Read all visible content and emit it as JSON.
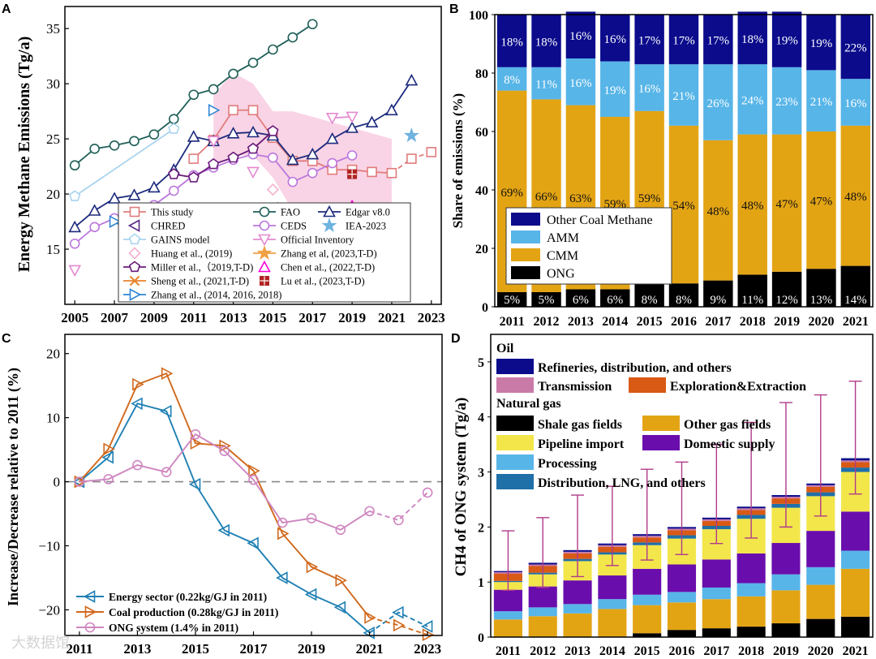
{
  "panel_labels": {
    "A": "A",
    "B": "B",
    "C": "C",
    "D": "D"
  },
  "chart_data": [
    {
      "panel": "A",
      "type": "line",
      "ylabel": "Energy Methane Emissions (Tg/a)",
      "xlim": [
        2004.5,
        2023.5
      ],
      "ylim": [
        10,
        37
      ],
      "x_ticks": [
        2005,
        2007,
        2009,
        2011,
        2013,
        2015,
        2017,
        2019,
        2021,
        2023
      ],
      "y_ticks": [
        15,
        20,
        25,
        30,
        35
      ],
      "band": {
        "x": [
          2012,
          2013,
          2014,
          2015,
          2016,
          2017,
          2018,
          2019,
          2020,
          2021
        ],
        "lower": [
          22.5,
          23.5,
          23.5,
          21.5,
          18.5,
          17.5,
          18,
          18.5,
          18,
          17.5
        ],
        "upper": [
          29,
          31,
          30,
          27.5,
          27.5,
          27,
          26.5,
          26,
          25.5,
          25
        ]
      },
      "series": [
        {
          "name": "This study",
          "color": "#e17b7b",
          "marker": "square",
          "x": [
            2011,
            2012,
            2013,
            2014,
            2015,
            2016,
            2017,
            2018,
            2019,
            2020,
            2021
          ],
          "y": [
            23.2,
            24.9,
            27.6,
            27.6,
            25.1,
            23.0,
            23.0,
            22.2,
            22.2,
            22.0,
            21.9
          ],
          "dashed_x": [
            2021,
            2022,
            2023
          ],
          "dashed_y": [
            21.9,
            23.2,
            23.8
          ]
        },
        {
          "name": "FAO",
          "color": "#1e5f57",
          "marker": "circle",
          "x": [
            2005,
            2006,
            2007,
            2008,
            2009,
            2010,
            2011,
            2012,
            2013,
            2014,
            2015,
            2016,
            2017
          ],
          "y": [
            22.6,
            24.1,
            24.4,
            24.8,
            25.4,
            26.8,
            29.0,
            29.5,
            30.9,
            31.9,
            33.1,
            34.2,
            35.4
          ]
        },
        {
          "name": "Edgar v8.0",
          "color": "#1c2a7c",
          "marker": "triangle-up",
          "x": [
            2005,
            2006,
            2007,
            2008,
            2009,
            2010,
            2011,
            2012,
            2013,
            2014,
            2015,
            2016,
            2017,
            2018,
            2019,
            2020,
            2021,
            2022
          ],
          "y": [
            17.0,
            18.5,
            19.6,
            19.9,
            20.6,
            22.2,
            25.2,
            24.8,
            25.5,
            25.6,
            25.3,
            23.1,
            23.6,
            25.0,
            26.0,
            26.5,
            27.6,
            30.3
          ]
        },
        {
          "name": "CHRED",
          "color": "#5b2a86",
          "marker": "triangle-left",
          "x": [
            2015
          ],
          "y": [
            18.7
          ]
        },
        {
          "name": "CEDS",
          "color": "#bb77dd",
          "marker": "circle",
          "x": [
            2005,
            2006,
            2007,
            2008,
            2009,
            2010,
            2011,
            2012,
            2013,
            2014,
            2015,
            2016,
            2017,
            2018,
            2019
          ],
          "y": [
            15.5,
            17.0,
            17.8,
            18.1,
            19.0,
            20.3,
            21.7,
            22.4,
            23.1,
            23.6,
            23.3,
            21.1,
            21.9,
            22.8,
            23.5
          ]
        },
        {
          "name": "IEA-2023",
          "color": "#6fb3e0",
          "marker": "star",
          "x": [
            2022
          ],
          "y": [
            25.3
          ]
        },
        {
          "name": "GAINS model",
          "color": "#a9d4ef",
          "marker": "pentagon",
          "x": [
            2005,
            2010
          ],
          "y": [
            19.8,
            25.9
          ]
        },
        {
          "name": "Official Inventory",
          "color": "#e58ad0",
          "marker": "triangle-down",
          "x": [
            2005,
            2012,
            2014,
            2018,
            2019
          ],
          "y": [
            13.1,
            24.8,
            22.0,
            26.9,
            27.0
          ],
          "connect": [
            [
              3,
              4
            ]
          ]
        },
        {
          "name": "Huang et al., (2019)",
          "color": "#f3b1cf",
          "marker": "diamond",
          "x": [
            2015
          ],
          "y": [
            20.4
          ]
        },
        {
          "name": "Zhang et al, (2023,T-D)",
          "color": "#f0a045",
          "marker": "star",
          "x": [
            2010,
            2011,
            2012,
            2013,
            2014,
            2015,
            2016,
            2017
          ],
          "y": [
            14.5,
            16.0,
            16.5,
            17.6,
            16.6,
            16.2,
            16.3,
            17.4
          ]
        },
        {
          "name": "Miller et al.,（2019,T-D)",
          "color": "#6a1b7a",
          "marker": "pentagon",
          "x": [
            2010,
            2011,
            2012,
            2013,
            2014,
            2015
          ],
          "y": [
            21.8,
            21.5,
            22.7,
            23.3,
            24.1,
            25.7
          ]
        },
        {
          "name": "Chen et al., (2022,T-D)",
          "color": "#ff00d8",
          "marker": "triangle-up",
          "x": [
            2019
          ],
          "y": [
            18.9
          ]
        },
        {
          "name": "Sheng et al., (2021,T-D)",
          "color": "#e8832b",
          "marker": "x",
          "x": [
            2010,
            2011,
            2012,
            2013,
            2014,
            2015,
            2016,
            2017
          ],
          "y": [
            14.5,
            15.5,
            15.8,
            15.8,
            15.8,
            15.9,
            15.8,
            16.1
          ]
        },
        {
          "name": "Lu et al., (2023,T-D)",
          "color": "#b22222",
          "marker": "square-plus",
          "x": [
            2019
          ],
          "y": [
            21.8
          ]
        },
        {
          "name": "Zhang et al., (2014, 2016, 2018)",
          "color": "#2f86d4",
          "marker": "triangle-right",
          "x": [
            2007,
            2008,
            2012
          ],
          "y": [
            17.5,
            16.4,
            27.6
          ],
          "connect": [
            [
              0,
              1
            ]
          ]
        }
      ]
    },
    {
      "panel": "B",
      "type": "bar",
      "stacked": true,
      "ylabel": "Share of emissions (%)",
      "ylim": [
        0,
        100
      ],
      "y_ticks": [
        0,
        20,
        40,
        60,
        80,
        100
      ],
      "categories": [
        "2011",
        "2012",
        "2013",
        "2014",
        "2015",
        "2016",
        "2017",
        "2018",
        "2019",
        "2020",
        "2021"
      ],
      "series": [
        {
          "name": "ONG",
          "color": "#000000",
          "values": [
            5,
            5,
            6,
            6,
            8,
            8,
            9,
            11,
            12,
            13,
            14
          ],
          "labels": [
            "5%",
            "5%",
            "6%",
            "6%",
            "8%",
            "8%",
            "9%",
            "11%",
            "12%",
            "13%",
            "14%"
          ]
        },
        {
          "name": "CMM",
          "color": "#e3a414",
          "values": [
            69,
            66,
            63,
            59,
            59,
            54,
            48,
            48,
            47,
            47,
            48
          ],
          "labels": [
            "69%",
            "66%",
            "63%",
            "59%",
            "59%",
            "54%",
            "48%",
            "48%",
            "47%",
            "47%",
            "48%"
          ]
        },
        {
          "name": "AMM",
          "color": "#57b5e8",
          "values": [
            8,
            11,
            16,
            19,
            16,
            21,
            26,
            24,
            23,
            21,
            16
          ],
          "labels": [
            "8%",
            "11%",
            "16%",
            "19%",
            "16%",
            "21%",
            "26%",
            "24%",
            "23%",
            "21%",
            "16%"
          ]
        },
        {
          "name": "Other Coal Methane",
          "color": "#0b0b8c",
          "values": [
            18,
            18,
            16,
            16,
            17,
            17,
            17,
            18,
            19,
            19,
            22
          ],
          "labels": [
            "18%",
            "18%",
            "16%",
            "16%",
            "17%",
            "17%",
            "17%",
            "18%",
            "19%",
            "19%",
            "22%"
          ]
        }
      ],
      "legend_order": [
        "Other Coal Methane",
        "AMM",
        "CMM",
        "ONG"
      ]
    },
    {
      "panel": "C",
      "type": "line",
      "ylabel": "Increase/Decrease relative to 2011 (%)",
      "xlim": [
        2010.5,
        2023.5
      ],
      "ylim": [
        -24,
        23
      ],
      "x_ticks": [
        2011,
        2013,
        2015,
        2017,
        2019,
        2021,
        2023
      ],
      "y_ticks": [
        -20,
        -10,
        0,
        10,
        20
      ],
      "series": [
        {
          "name": "Energy sector (0.22kg/GJ in 2011)",
          "color": "#1f80b4",
          "marker": "triangle-left",
          "x": [
            2011,
            2012,
            2013,
            2014,
            2015,
            2016,
            2017,
            2018,
            2019,
            2020,
            2021
          ],
          "y": [
            0,
            3.8,
            12.2,
            11.0,
            -0.4,
            -7.6,
            -9.6,
            -15.0,
            -17.6,
            -19.6,
            -23.6
          ],
          "dashed_x": [
            2021,
            2022,
            2023
          ],
          "dashed_y": [
            -23.6,
            -20.4,
            -22.6
          ]
        },
        {
          "name": "Coal production (0.28kg/GJ in 2011)",
          "color": "#d1691c",
          "marker": "triangle-right",
          "x": [
            2011,
            2012,
            2013,
            2014,
            2015,
            2016,
            2017,
            2018,
            2019,
            2020,
            2021
          ],
          "y": [
            0,
            5.1,
            15.2,
            16.9,
            6.0,
            5.6,
            1.7,
            -8.1,
            -13.3,
            -15.4,
            -21.2
          ],
          "dashed_x": [
            2021,
            2022,
            2023
          ],
          "dashed_y": [
            -21.2,
            -22.4,
            -23.9
          ]
        },
        {
          "name": "ONG system (1.4% in 2011)",
          "color": "#cf86c0",
          "marker": "circle",
          "x": [
            2011,
            2012,
            2013,
            2014,
            2015,
            2016,
            2017,
            2018,
            2019,
            2020,
            2021
          ],
          "y": [
            0,
            0.4,
            2.6,
            1.5,
            7.4,
            4.8,
            0.3,
            -6.4,
            -5.7,
            -7.5,
            -4.6
          ],
          "dashed_x": [
            2021,
            2022,
            2023
          ],
          "dashed_y": [
            -4.6,
            -6.0,
            -1.7
          ]
        }
      ]
    },
    {
      "panel": "D",
      "type": "bar",
      "stacked": true,
      "ylabel": "CH4 of ONG system (Tg/a)",
      "ylim": [
        0,
        5.5
      ],
      "y_ticks": [
        0,
        1,
        2,
        3,
        4,
        5
      ],
      "categories": [
        "2011",
        "2012",
        "2013",
        "2014",
        "2015",
        "2016",
        "2017",
        "2018",
        "2019",
        "2020",
        "2021"
      ],
      "legend_group_oil": "Oil",
      "legend_group_gas": "Natural gas",
      "series": [
        {
          "name": "Shale gas fields",
          "color": "#000000",
          "values": [
            0.0,
            0.0,
            0.0,
            0.01,
            0.07,
            0.13,
            0.16,
            0.19,
            0.25,
            0.33,
            0.37
          ]
        },
        {
          "name": "Other gas fields",
          "color": "#e3a414",
          "values": [
            0.32,
            0.38,
            0.43,
            0.5,
            0.51,
            0.5,
            0.53,
            0.55,
            0.6,
            0.62,
            0.87
          ]
        },
        {
          "name": "Processing",
          "color": "#57b5e8",
          "values": [
            0.15,
            0.16,
            0.17,
            0.18,
            0.19,
            0.19,
            0.21,
            0.24,
            0.29,
            0.32,
            0.33
          ]
        },
        {
          "name": "Domestic supply",
          "color": "#6a0dad",
          "values": [
            0.39,
            0.38,
            0.43,
            0.43,
            0.47,
            0.5,
            0.51,
            0.54,
            0.57,
            0.66,
            0.71
          ]
        },
        {
          "name": "Pipeline import",
          "color": "#f2e64b",
          "values": [
            0.14,
            0.22,
            0.35,
            0.38,
            0.43,
            0.47,
            0.55,
            0.63,
            0.64,
            0.63,
            0.72
          ]
        },
        {
          "name": "Distribution, LNG, and others",
          "color": "#1f6fa8",
          "values": [
            0.02,
            0.03,
            0.04,
            0.04,
            0.05,
            0.06,
            0.06,
            0.07,
            0.07,
            0.07,
            0.08
          ]
        },
        {
          "name": "Exploration&Extraction",
          "color": "#d85a15",
          "values": [
            0.13,
            0.12,
            0.1,
            0.1,
            0.09,
            0.09,
            0.09,
            0.09,
            0.1,
            0.1,
            0.1
          ]
        },
        {
          "name": "Transmission",
          "color": "#c97aa7",
          "values": [
            0.03,
            0.03,
            0.03,
            0.03,
            0.03,
            0.03,
            0.03,
            0.03,
            0.03,
            0.03,
            0.03
          ]
        },
        {
          "name": "Refineries, distribution, and others",
          "color": "#0b0b8c",
          "values": [
            0.02,
            0.03,
            0.03,
            0.03,
            0.03,
            0.03,
            0.03,
            0.03,
            0.03,
            0.03,
            0.04
          ]
        }
      ],
      "errors": {
        "low": [
          0.85,
          0.9,
          1.1,
          1.3,
          1.4,
          1.5,
          1.7,
          1.8,
          2.0,
          2.2,
          2.6
        ],
        "high": [
          1.93,
          2.17,
          2.58,
          2.74,
          3.05,
          3.18,
          3.5,
          3.9,
          4.26,
          4.4,
          4.65
        ]
      }
    }
  ],
  "watermark": "大数据馆"
}
